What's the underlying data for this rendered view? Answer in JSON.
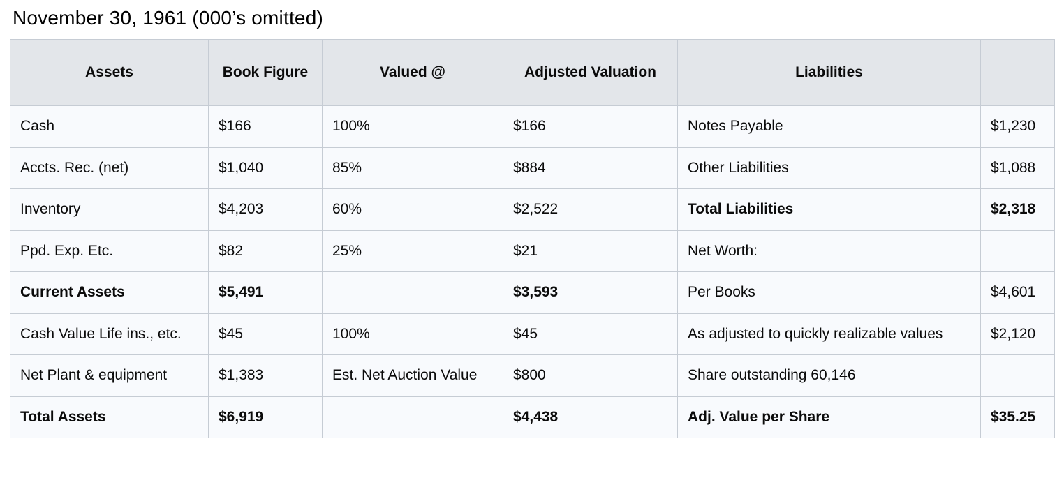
{
  "title": "November 30, 1961 (000’s omitted)",
  "colors": {
    "header_background": "#e3e6ea",
    "cell_background": "#f8fafd",
    "border": "#c6ccd4",
    "text": "#0b0b0b"
  },
  "table": {
    "headers": [
      "Assets",
      "Book Figure",
      "Valued @",
      "Adjusted Valuation",
      "Liabilities",
      ""
    ],
    "rows": [
      {
        "asset": "Cash",
        "book": "$166",
        "valued": "100%",
        "adjusted": "$166",
        "liability": "Notes Payable",
        "amount": "$1,230",
        "bold_assets": false,
        "bold_liabilities": false
      },
      {
        "asset": "Accts. Rec. (net)",
        "book": "$1,040",
        "valued": "85%",
        "adjusted": "$884",
        "liability": "Other Liabilities",
        "amount": "$1,088",
        "bold_assets": false,
        "bold_liabilities": false
      },
      {
        "asset": "Inventory",
        "book": "$4,203",
        "valued": "60%",
        "adjusted": "$2,522",
        "liability": "Total Liabilities",
        "amount": "$2,318",
        "bold_assets": false,
        "bold_liabilities": true
      },
      {
        "asset": "Ppd. Exp. Etc.",
        "book": "$82",
        "valued": "25%",
        "adjusted": "$21",
        "liability": "Net Worth:",
        "amount": "",
        "bold_assets": false,
        "bold_liabilities": false
      },
      {
        "asset": "Current Assets",
        "book": "$5,491",
        "valued": "",
        "adjusted": "$3,593",
        "liability": "Per Books",
        "amount": "$4,601",
        "bold_assets": true,
        "bold_liabilities": false
      },
      {
        "asset": "Cash Value Life ins., etc.",
        "book": "$45",
        "valued": "100%",
        "adjusted": "$45",
        "liability": "As adjusted to quickly realizable values",
        "amount": "$2,120",
        "bold_assets": false,
        "bold_liabilities": false
      },
      {
        "asset": "Net Plant & equipment",
        "book": "$1,383",
        "valued": "Est. Net Auction Value",
        "adjusted": "$800",
        "liability": "Share outstanding 60,146",
        "amount": "",
        "bold_assets": false,
        "bold_liabilities": false
      },
      {
        "asset": "Total Assets",
        "book": "$6,919",
        "valued": "",
        "adjusted": "$4,438",
        "liability": "Adj. Value per Share",
        "amount": "$35.25",
        "bold_assets": true,
        "bold_liabilities": true
      }
    ]
  }
}
